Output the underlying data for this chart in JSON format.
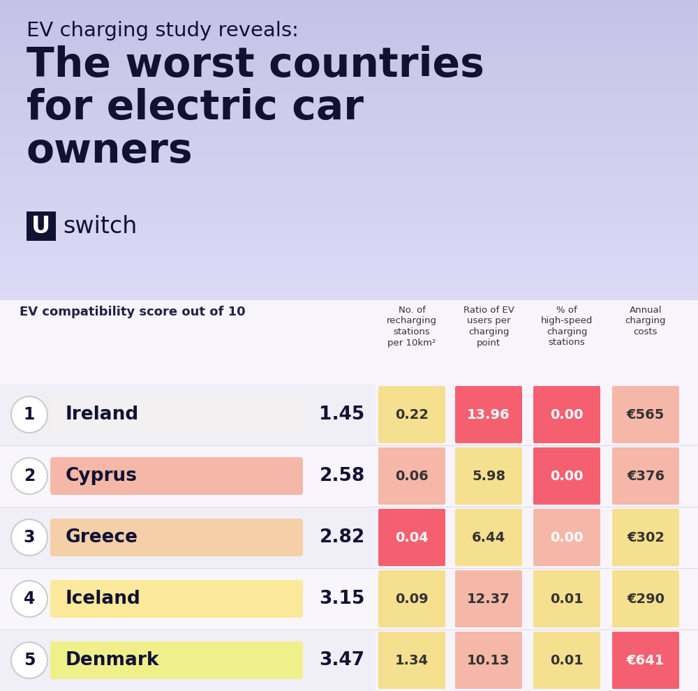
{
  "title_line1": "EV charging study reveals:",
  "title_line2": "The worst countries\nfor electric car\nowners",
  "subtitle": "EV compatibility score out of 10",
  "bg_top_color": "#c5c2e8",
  "bg_bottom_color": "#f0ecf8",
  "table_bg": "#f7f4fb",
  "countries": [
    "Ireland",
    "Cyprus",
    "Greece",
    "Iceland",
    "Denmark"
  ],
  "ranks": [
    1,
    2,
    3,
    4,
    5
  ],
  "scores": [
    "1.45",
    "2.58",
    "2.82",
    "3.15",
    "3.47"
  ],
  "bar_colors": [
    "#f2f0f0",
    "#f5b8a8",
    "#f5cfa8",
    "#fce99a",
    "#f0f08a"
  ],
  "col_headers": [
    "No. of\nrecharging\nstations\nper 10km²",
    "Ratio of EV\nusers per\ncharging\npoint",
    "% of\nhigh-speed\ncharging\nstations",
    "Annual\ncharging\ncosts"
  ],
  "data_str_values": [
    [
      "0.22",
      "13.96",
      "0.00",
      "€565"
    ],
    [
      "0.06",
      "5.98",
      "0.00",
      "€376"
    ],
    [
      "0.04",
      "6.44",
      "0.00",
      "€302"
    ],
    [
      "0.09",
      "12.37",
      "0.01",
      "€290"
    ],
    [
      "1.34",
      "10.13",
      "0.01",
      "€641"
    ]
  ],
  "cell_colors": [
    [
      "#f5e090",
      "#f56070",
      "#f56070",
      "#f5b8a8"
    ],
    [
      "#f5b8a8",
      "#f5e090",
      "#f56070",
      "#f5b8a8"
    ],
    [
      "#f56070",
      "#f5e090",
      "#f5b8a8",
      "#f5e090"
    ],
    [
      "#f5e090",
      "#f5b8a8",
      "#f5e090",
      "#f5e090"
    ],
    [
      "#f5e090",
      "#f5b8a8",
      "#f5e090",
      "#f56070"
    ]
  ],
  "cell_text_colors": [
    [
      "#333333",
      "#ffffff",
      "#ffffff",
      "#333333"
    ],
    [
      "#333333",
      "#333333",
      "#ffffff",
      "#333333"
    ],
    [
      "#ffffff",
      "#333333",
      "#ffffff",
      "#333333"
    ],
    [
      "#333333",
      "#333333",
      "#333333",
      "#333333"
    ],
    [
      "#333333",
      "#333333",
      "#333333",
      "#ffffff"
    ]
  ],
  "row_bg_colors": [
    "#f0eef6",
    "#f8f6fc",
    "#f0eef6",
    "#f8f6fc",
    "#f0eef6"
  ]
}
